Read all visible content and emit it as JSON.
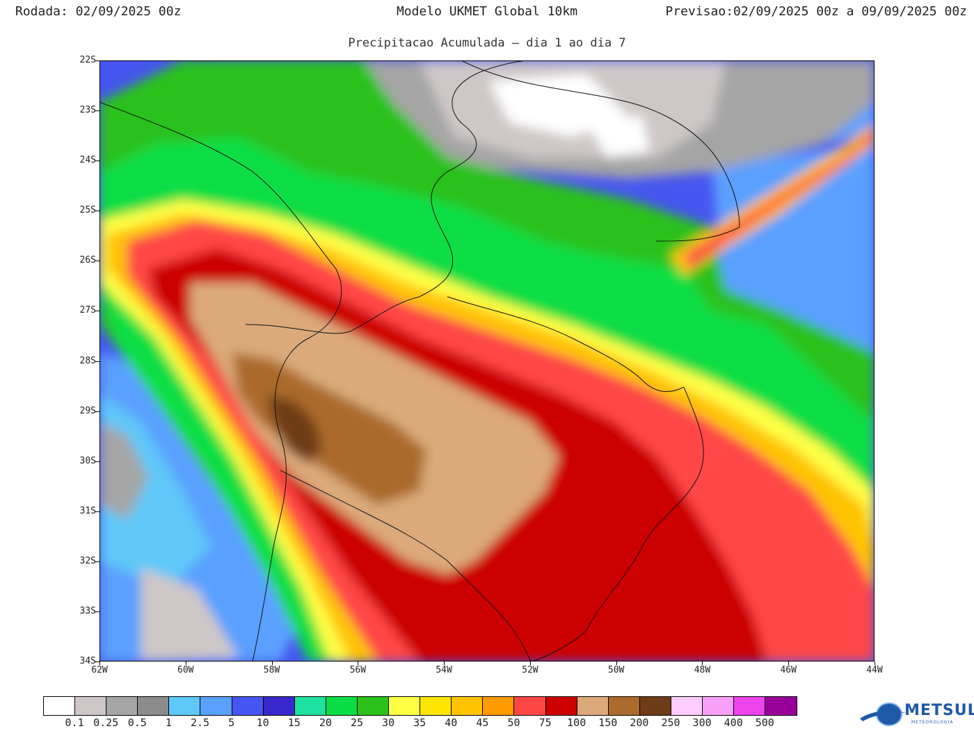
{
  "header": {
    "rodada_label": "Rodada:",
    "rodada_value": "02/09/2025 00z",
    "model": "Modelo UKMET Global 10km",
    "previsao_label": "Previsao:",
    "previsao_value": "02/09/2025 00z a 09/09/2025 00z"
  },
  "subtitle": "Precipitacao Acumulada — dia 1 ao dia 7",
  "map": {
    "lat_labels": [
      "22S",
      "23S",
      "24S",
      "25S",
      "26S",
      "27S",
      "28S",
      "29S",
      "30S",
      "31S",
      "32S",
      "33S",
      "34S"
    ],
    "lon_labels": [
      "62W",
      "60W",
      "58W",
      "56W",
      "54W",
      "52W",
      "50W",
      "48W",
      "46W",
      "44W"
    ]
  },
  "legend": {
    "colors": [
      "#ffffff",
      "#cfc7c7",
      "#a5a5a5",
      "#8c8c8c",
      "#5ec8f8",
      "#5aa0ff",
      "#4656f0",
      "#3828cc",
      "#1ee0a0",
      "#0ade44",
      "#2cc11a",
      "#ffff46",
      "#ffe600",
      "#ffc300",
      "#ff9b00",
      "#ff4646",
      "#cc0000",
      "#dcaa7a",
      "#ab6b2c",
      "#6e3c16",
      "#ffcdff",
      "#f8a0f8",
      "#ee44ee",
      "#990099"
    ],
    "labels": [
      "0.1",
      "0.25",
      "0.5",
      "1",
      "2.5",
      "5",
      "10",
      "15",
      "20",
      "25",
      "30",
      "35",
      "40",
      "45",
      "50",
      "75",
      "100",
      "150",
      "200",
      "250",
      "300",
      "400",
      "500"
    ]
  },
  "logo": {
    "text": "METSUL",
    "subtext": "METEOROLOGIA"
  }
}
